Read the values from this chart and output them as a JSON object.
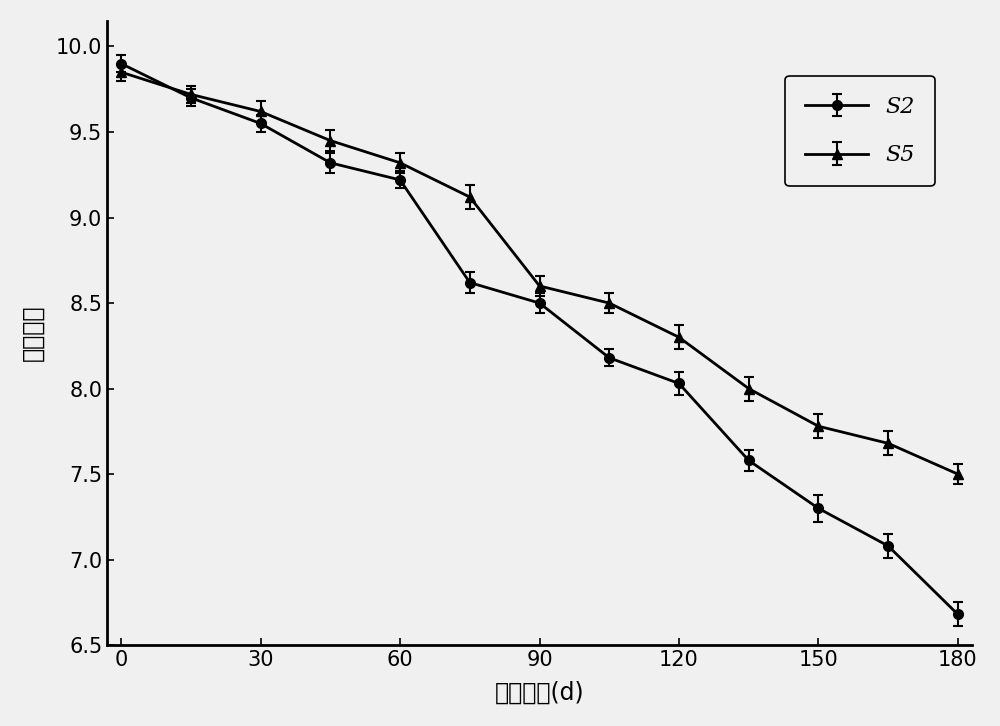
{
  "x": [
    0,
    15,
    30,
    45,
    60,
    75,
    90,
    105,
    120,
    135,
    150,
    165,
    180
  ],
  "S2_y": [
    9.9,
    9.7,
    9.55,
    9.32,
    9.22,
    8.62,
    8.5,
    8.18,
    8.03,
    7.58,
    7.3,
    7.08,
    6.68
  ],
  "S2_err": [
    0.05,
    0.05,
    0.05,
    0.06,
    0.05,
    0.06,
    0.06,
    0.05,
    0.07,
    0.06,
    0.08,
    0.07,
    0.07
  ],
  "S5_y": [
    9.85,
    9.72,
    9.62,
    9.45,
    9.32,
    9.12,
    8.6,
    8.5,
    8.3,
    8.0,
    7.78,
    7.68,
    7.5
  ],
  "S5_err": [
    0.05,
    0.05,
    0.06,
    0.06,
    0.06,
    0.07,
    0.06,
    0.06,
    0.07,
    0.07,
    0.07,
    0.07,
    0.06
  ],
  "xlabel": "购藏时间(d)",
  "ylabel": "感官分値",
  "xlim": [
    -3,
    183
  ],
  "ylim": [
    6.5,
    10.15
  ],
  "xticks": [
    0,
    30,
    60,
    90,
    120,
    150,
    180
  ],
  "yticks": [
    6.5,
    7.0,
    7.5,
    8.0,
    8.5,
    9.0,
    9.5,
    10.0
  ],
  "line_color": "#000000",
  "bg_color": "#f0f0f0",
  "legend_labels": [
    "S2",
    "S5"
  ]
}
